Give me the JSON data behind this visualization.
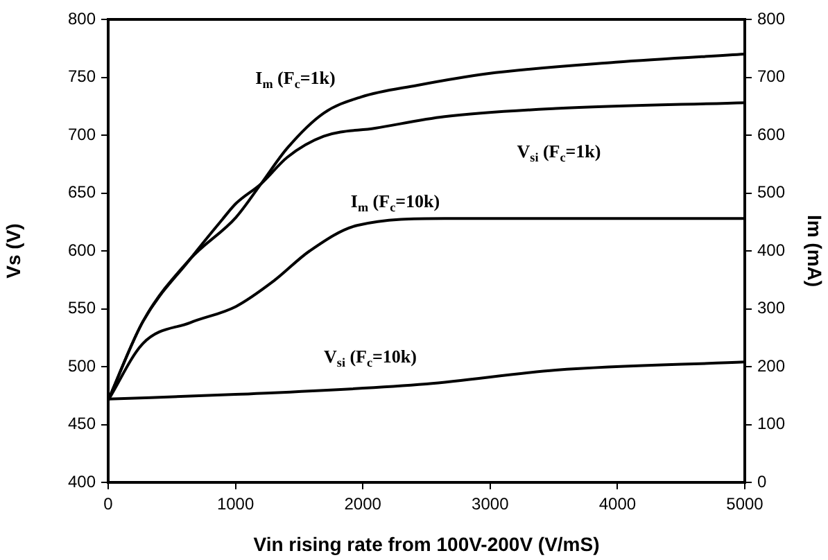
{
  "chart_data": {
    "type": "line",
    "xlabel": "Vin rising rate from 100V-200V (V/mS)",
    "ylabel": "Vs (V)",
    "y2label": "Im (mA)",
    "series": [
      {
        "name": "I$_{m}$ (F$_{c}$=1k)",
        "color": "#000000",
        "axis": "y2",
        "x": [
          0,
          273,
          644,
          1004,
          1201,
          1408,
          1692,
          1987,
          2424,
          2969,
          3985,
          5000
        ],
        "values": [
          142,
          278,
          386,
          458,
          516,
          578,
          638,
          666,
          686,
          706,
          726,
          740
        ]
      },
      {
        "name": "V$_{si}$ (F$_{c}$=1k)",
        "color": "#000000",
        "x": [
          0,
          273,
          644,
          895,
          1004,
          1201,
          1408,
          1692,
          2096,
          2642,
          3515,
          5000
        ],
        "values": [
          471,
          539,
          593,
          627,
          641,
          658,
          681,
          699,
          706,
          716,
          723,
          728
        ]
      },
      {
        "name": "I$_{m}$ (F$_{c}$=10k)",
        "color": "#000000",
        "axis": "y2",
        "x": [
          0,
          273,
          644,
          1004,
          1300,
          1583,
          1955,
          2642,
          5000
        ],
        "values": [
          142,
          240,
          276,
          304,
          348,
          400,
          444,
          456,
          456
        ]
      },
      {
        "name": "V$_{si}$ (F$_{c}$=10k)",
        "color": "#000000",
        "x": [
          0,
          1000,
          2500,
          3515,
          5000
        ],
        "values": [
          472,
          476,
          485,
          497,
          504
        ]
      }
    ],
    "xlim": [
      0,
      5000
    ],
    "xticks": [
      0,
      1000,
      2000,
      3000,
      4000,
      5000
    ],
    "ylim": [
      400,
      800
    ],
    "yticks": [
      400,
      450,
      500,
      550,
      600,
      650,
      700,
      750,
      800
    ],
    "y2lim": [
      0,
      800
    ],
    "y2ticks": [
      0,
      100,
      200,
      300,
      400,
      500,
      600,
      700,
      800
    ],
    "grid": false,
    "legend": false,
    "marker": "none",
    "line_style": "solid"
  }
}
